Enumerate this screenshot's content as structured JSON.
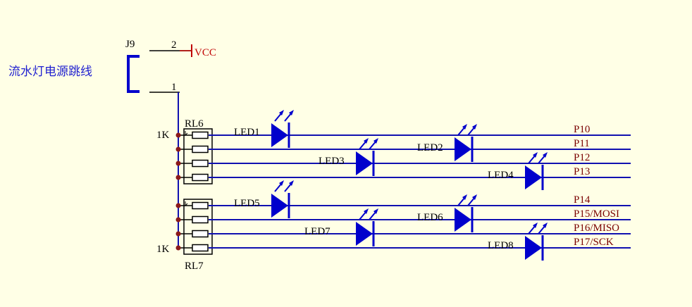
{
  "colors": {
    "background": "#FFFFE6",
    "wire": "#1010B0",
    "component": "#0000CC",
    "junction": "#8B1A1A",
    "net_label": "#7A0000",
    "power_symbol": "#C00000",
    "annotation": "#1F1FD0"
  },
  "jumper": {
    "designator": "J9",
    "pin1": "1",
    "pin2": "2",
    "power_net": "VCC",
    "description": "流水灯电源跳线"
  },
  "resistor_networks": [
    {
      "designator": "RL6",
      "value": "1K"
    },
    {
      "designator": "RL7",
      "value": "1K"
    }
  ],
  "leds": [
    "LED1",
    "LED2",
    "LED3",
    "LED4",
    "LED5",
    "LED6",
    "LED7",
    "LED8"
  ],
  "nets": [
    "P10",
    "P11",
    "P12",
    "P13",
    "P14",
    "P15/MOSI",
    "P16/MISO",
    "P17/SCK"
  ]
}
